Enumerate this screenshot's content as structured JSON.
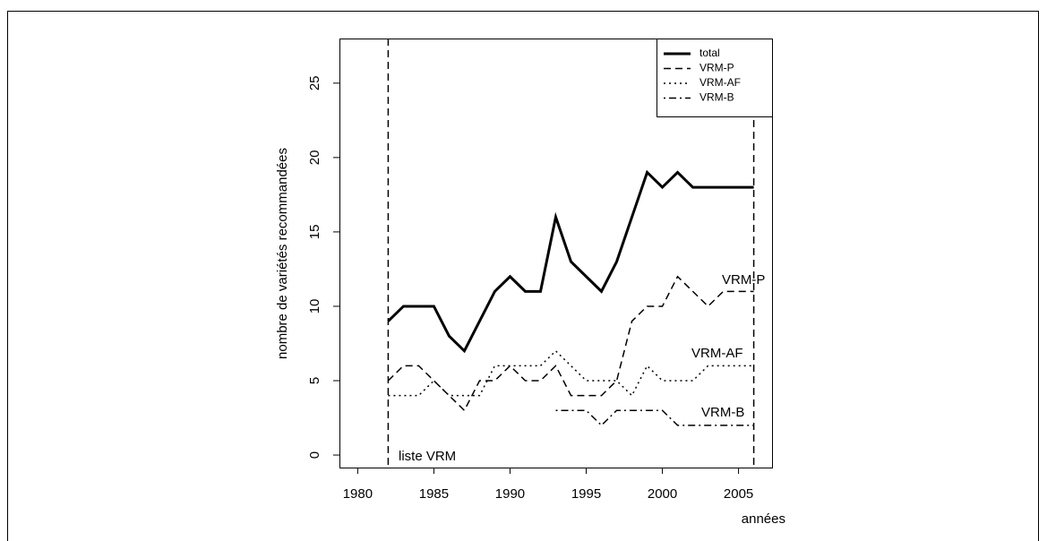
{
  "chart_data": {
    "type": "line",
    "xlabel": "années",
    "ylabel": "nombre de variétés recommandées",
    "x": [
      1982,
      1983,
      1984,
      1985,
      1986,
      1987,
      1988,
      1989,
      1990,
      1991,
      1992,
      1993,
      1994,
      1995,
      1996,
      1997,
      1998,
      1999,
      2000,
      2001,
      2002,
      2003,
      2004,
      2005,
      2006
    ],
    "series": [
      {
        "name": "total",
        "color": "#000000",
        "linestyle": "solid",
        "values": [
          9,
          10,
          10,
          10,
          8,
          7,
          9,
          11,
          12,
          11,
          11,
          16,
          13,
          12,
          11,
          13,
          16,
          19,
          18,
          19,
          18,
          18,
          18,
          18,
          18
        ]
      },
      {
        "name": "VRM-P",
        "color": "#000000",
        "linestyle": "dashed",
        "values": [
          5,
          6,
          6,
          5,
          4,
          3,
          5,
          5,
          6,
          5,
          5,
          6,
          4,
          4,
          4,
          5,
          9,
          10,
          10,
          12,
          11,
          10,
          11,
          11,
          11
        ]
      },
      {
        "name": "VRM-AF",
        "color": "#000000",
        "linestyle": "dotted",
        "values": [
          4,
          4,
          4,
          5,
          4,
          4,
          4,
          6,
          6,
          6,
          6,
          7,
          6,
          5,
          5,
          5,
          4,
          6,
          5,
          5,
          5,
          6,
          6,
          6,
          6
        ]
      },
      {
        "name": "VRM-B",
        "color": "#000000",
        "linestyle": "dashdot",
        "values": [
          null,
          null,
          null,
          null,
          null,
          null,
          null,
          null,
          null,
          null,
          null,
          3,
          3,
          3,
          2,
          3,
          3,
          3,
          3,
          2,
          2,
          2,
          2,
          2,
          2
        ]
      }
    ],
    "vlines": [
      1982,
      2006
    ],
    "annotations": [
      "liste VRM",
      "VRM-P",
      "VRM-AF",
      "VRM-B"
    ],
    "xlim": [
      1978.8,
      2007.2
    ],
    "xticks": [
      1980,
      1985,
      1990,
      1995,
      2000,
      2005
    ],
    "ylim": [
      -0.84,
      28.0
    ],
    "yticks": [
      0,
      5,
      10,
      15,
      20,
      25
    ],
    "legend": "upper right"
  }
}
